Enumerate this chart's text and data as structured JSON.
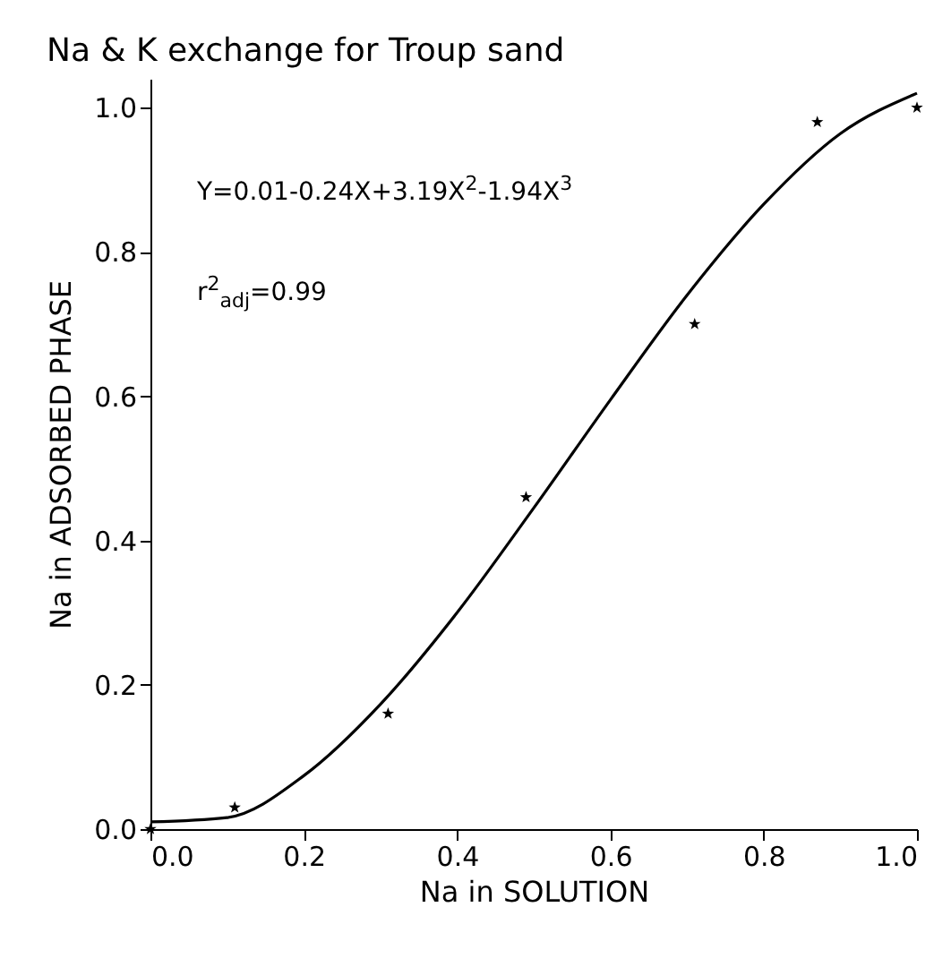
{
  "chart_data": {
    "type": "scatter",
    "title": "Na & K exchange for Troup sand",
    "xlabel": "Na in SOLUTION",
    "ylabel": "Na in ADSORBED PHASE",
    "xlim": [
      0,
      1.0
    ],
    "ylim": [
      0,
      1.04
    ],
    "xticks": [
      {
        "value": 0,
        "label": "0.0"
      },
      {
        "value": 0.2,
        "label": "0.2"
      },
      {
        "value": 0.4,
        "label": "0.4"
      },
      {
        "value": 0.6,
        "label": "0.6"
      },
      {
        "value": 0.8,
        "label": "0.8"
      },
      {
        "value": 1,
        "label": "1.0"
      }
    ],
    "yticks": [
      {
        "value": 0,
        "label": "0.0"
      },
      {
        "value": 0.2,
        "label": "0.2"
      },
      {
        "value": 0.4,
        "label": "0.4"
      },
      {
        "value": 0.6,
        "label": "0.6"
      },
      {
        "value": 0.8,
        "label": "0.8"
      },
      {
        "value": 1,
        "label": "1.0"
      }
    ],
    "marker": "star",
    "annotations": [
      "Y=0.01-0.24X+3.19X$^{2}$-1.94X$^{3}$",
      "r$^{2}$$_{adj}$=0.99"
    ],
    "series": [
      {
        "color": "#000000",
        "x": [
          0,
          0.11,
          0.31,
          0.49,
          0.71,
          0.87,
          1.0
        ],
        "values": [
          0,
          0.03,
          0.16,
          0.46,
          0.7,
          0.98,
          1.0
        ]
      },
      {
        "type": "line",
        "marker": "none",
        "color": "#000000",
        "x": [
          0,
          0.1,
          0.2,
          0.3,
          0.4,
          0.5,
          0.6,
          0.7,
          0.8,
          0.9,
          1.0
        ],
        "values": [
          0.01,
          0.016,
          0.074,
          0.173,
          0.3,
          0.445,
          0.595,
          0.74,
          0.866,
          0.964,
          1.02
        ]
      }
    ]
  }
}
